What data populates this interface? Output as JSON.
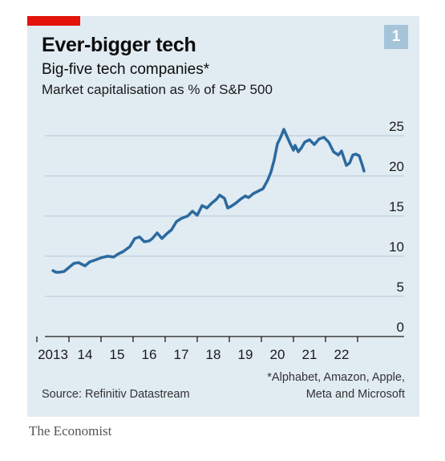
{
  "header": {
    "title": "Ever-bigger tech",
    "subtitle": "Big-five tech companies*",
    "subtitle2": "Market capitalisation as % of S&P 500",
    "badge": "1"
  },
  "footer": {
    "footnote_line1": "*Alphabet, Amazon, Apple,",
    "footnote_line2": "Meta and Microsoft",
    "source": "Source: Refinitiv Datastream",
    "brand": "The Economist"
  },
  "colors": {
    "background": "#e1ebf2",
    "line": "#2b6a9f",
    "accent": "#e3120b",
    "grid": "#b3c8d6"
  },
  "chart_data": {
    "type": "line",
    "title": "Ever-bigger tech",
    "subtitle": "Big-five tech companies*",
    "ylabel": "Market capitalisation as % of S&P 500",
    "ylim": [
      0,
      25
    ],
    "xlim": [
      2012.75,
      2023.0
    ],
    "grid": true,
    "yticks": [
      0,
      5,
      10,
      15,
      20,
      25
    ],
    "xtick_labels": [
      "2013",
      "14",
      "15",
      "16",
      "17",
      "18",
      "19",
      "20",
      "21",
      "22"
    ],
    "xtick_values": [
      2013,
      2014,
      2015,
      2016,
      2017,
      2018,
      2019,
      2020,
      2021,
      2022
    ],
    "series": [
      {
        "x": [
          2013.0,
          2013.1,
          2013.2,
          2013.35,
          2013.5,
          2013.65,
          2013.8,
          2014.0,
          2014.15,
          2014.3,
          2014.5,
          2014.7,
          2014.9,
          2015.0,
          2015.2,
          2015.4,
          2015.55,
          2015.7,
          2015.85,
          2016.0,
          2016.1,
          2016.25,
          2016.4,
          2016.55,
          2016.7,
          2016.85,
          2017.0,
          2017.2,
          2017.35,
          2017.5,
          2017.65,
          2017.8,
          2017.95,
          2018.1,
          2018.2,
          2018.35,
          2018.45,
          2018.55,
          2018.7,
          2018.85,
          2019.0,
          2019.1,
          2019.25,
          2019.4,
          2019.55,
          2019.7,
          2019.8,
          2019.9,
          2020.0,
          2020.1,
          2020.2,
          2020.3,
          2020.4,
          2020.5,
          2020.55,
          2020.65,
          2020.75,
          2020.85,
          2021.0,
          2021.15,
          2021.3,
          2021.45,
          2021.6,
          2021.75,
          2021.9,
          2022.0,
          2022.15,
          2022.25,
          2022.35,
          2022.45,
          2022.55,
          2022.65,
          2022.7
        ],
        "y": [
          8.2,
          8.0,
          8.0,
          8.1,
          8.6,
          9.1,
          9.2,
          8.8,
          9.3,
          9.5,
          9.8,
          10.0,
          9.9,
          10.2,
          10.6,
          11.2,
          12.2,
          12.4,
          11.8,
          11.9,
          12.2,
          12.9,
          12.2,
          12.8,
          13.3,
          14.3,
          14.7,
          15.0,
          15.6,
          15.1,
          16.3,
          16.0,
          16.6,
          17.1,
          17.6,
          17.2,
          16.0,
          16.2,
          16.6,
          17.1,
          17.5,
          17.3,
          17.8,
          18.1,
          18.4,
          19.5,
          20.5,
          22.0,
          24.0,
          24.8,
          25.8,
          24.9,
          24.0,
          23.2,
          23.8,
          23.0,
          23.5,
          24.2,
          24.5,
          23.9,
          24.6,
          24.8,
          24.2,
          23.0,
          22.6,
          23.1,
          21.3,
          21.6,
          22.6,
          22.7,
          22.5,
          21.3,
          20.6
        ]
      }
    ],
    "footnote": "*Alphabet, Amazon, Apple, Meta and Microsoft",
    "source": "Source: Refinitiv Datastream"
  }
}
